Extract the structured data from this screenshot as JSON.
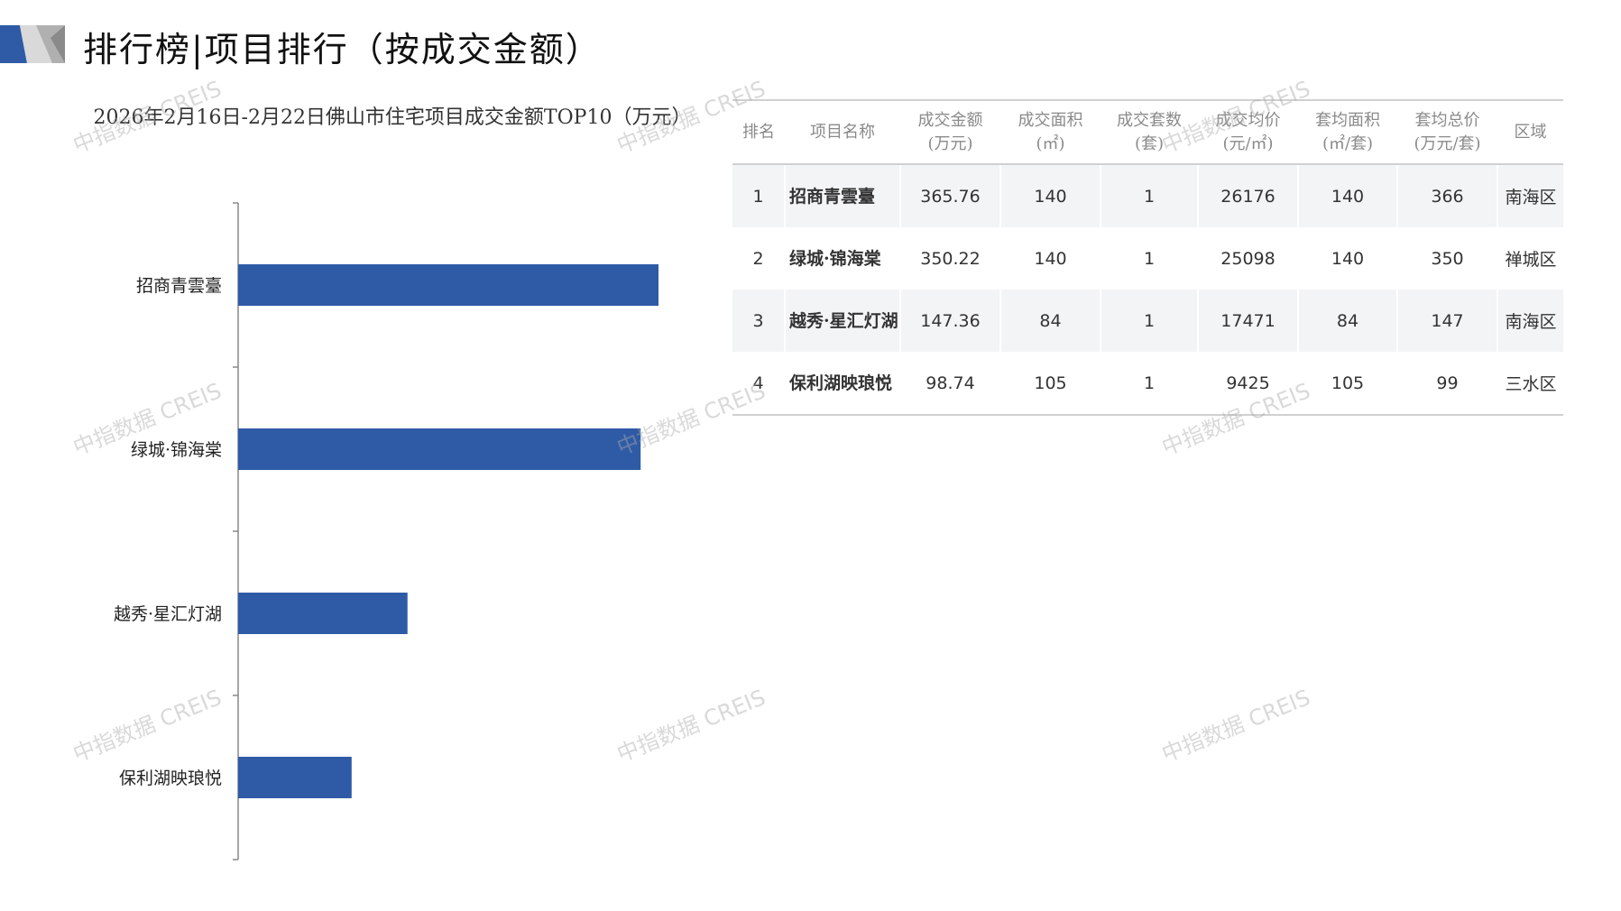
{
  "header": {
    "title": "排行榜|项目排行（按成交金额）",
    "brand_colors": {
      "blue": "#2f5ba6",
      "gray": "#b5b5b5"
    }
  },
  "watermark": "中指数据 CREIS",
  "chart_data": {
    "type": "bar",
    "orientation": "horizontal",
    "title": "2026年2月16日-2月22日佛山市住宅项目成交金额TOP10（万元）",
    "categories": [
      "招商青雲臺",
      "绿城·锦海棠",
      "越秀·星汇灯湖",
      "保利湖映琅悦"
    ],
    "values": [
      365.76,
      350.22,
      147.36,
      98.74
    ],
    "bar_color": "#2f5ba6",
    "grid": false,
    "legend": "none"
  },
  "table": {
    "headers": [
      [
        "排名"
      ],
      [
        "项目名称"
      ],
      [
        "成交金额",
        "(万元)"
      ],
      [
        "成交面积",
        "(㎡)"
      ],
      [
        "成交套数",
        "(套)"
      ],
      [
        "成交均价",
        "(元/㎡)"
      ],
      [
        "套均面积",
        "(㎡/套)"
      ],
      [
        "套均总价",
        "(万元/套)"
      ],
      [
        "区域"
      ]
    ],
    "rows": [
      [
        "1",
        "招商青雲臺",
        "365.76",
        "140",
        "1",
        "26176",
        "140",
        "366",
        "南海区"
      ],
      [
        "2",
        "绿城·锦海棠",
        "350.22",
        "140",
        "1",
        "25098",
        "140",
        "350",
        "禅城区"
      ],
      [
        "3",
        "越秀·星汇灯湖",
        "147.36",
        "84",
        "1",
        "17471",
        "84",
        "147",
        "南海区"
      ],
      [
        "4",
        "保利湖映琅悦",
        "98.74",
        "105",
        "1",
        "9425",
        "105",
        "99",
        "三水区"
      ]
    ]
  }
}
